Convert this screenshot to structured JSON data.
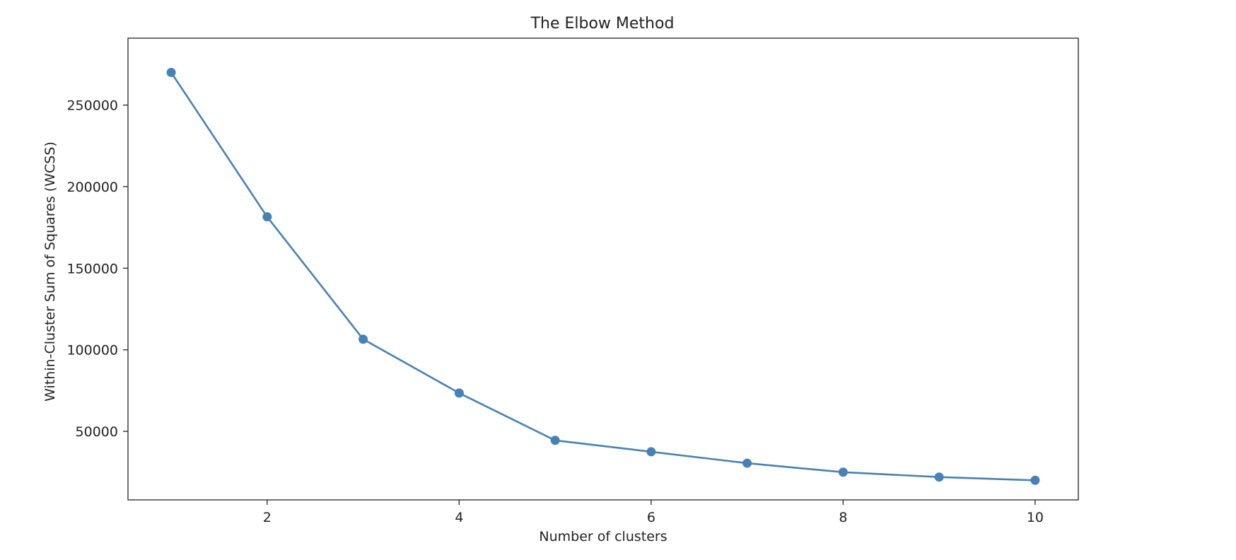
{
  "chart_data": {
    "type": "line",
    "title": "The Elbow Method",
    "xlabel": "Number of clusters",
    "ylabel": "Within-Cluster Sum of Squares (WCSS)",
    "x": [
      1,
      2,
      3,
      4,
      5,
      6,
      7,
      8,
      9,
      10
    ],
    "series": [
      {
        "values": [
          270000,
          181500,
          106500,
          73500,
          44500,
          37500,
          30500,
          25000,
          22000,
          20000
        ]
      }
    ],
    "xlim": [
      0.55,
      10.45
    ],
    "ylim": [
      8000,
      291000
    ],
    "xticks": [
      2,
      4,
      6,
      8,
      10
    ],
    "yticks": [
      50000,
      100000,
      150000,
      200000,
      250000
    ],
    "grid": false,
    "marker": "circle",
    "line_color": "#4682b4"
  }
}
